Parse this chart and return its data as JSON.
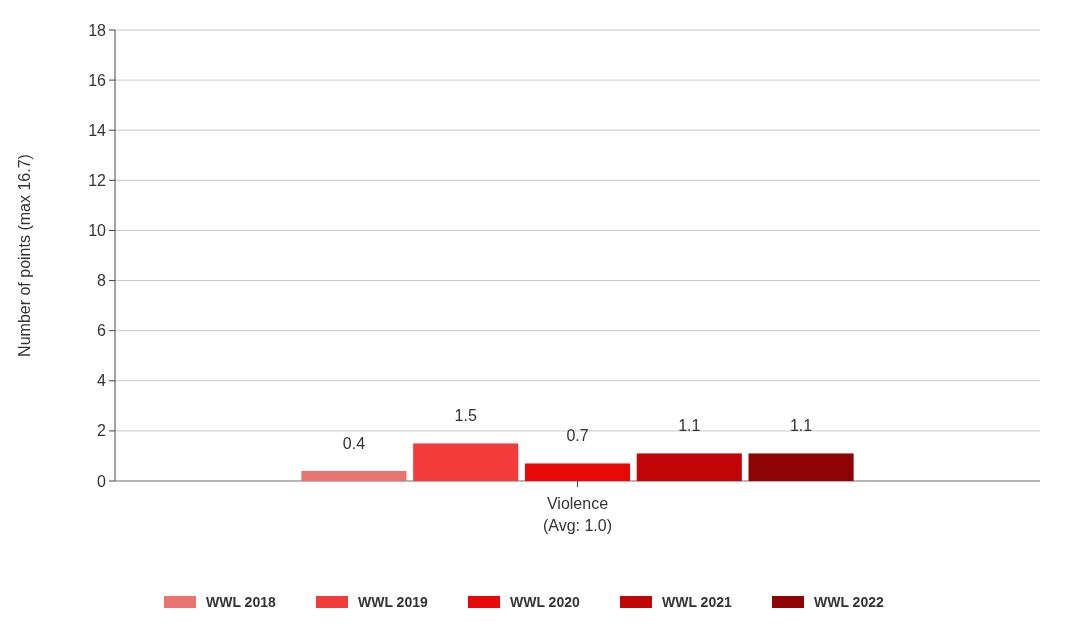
{
  "chart_data": {
    "type": "bar",
    "ylabel": "Number of points (max 16.7)",
    "categories": [
      "Violence\n(Avg: 1.0)"
    ],
    "series": [
      {
        "name": "WWL 2018",
        "color": "#e8736f",
        "values": [
          0.4
        ]
      },
      {
        "name": "WWL 2019",
        "color": "#f23c3c",
        "values": [
          1.5
        ]
      },
      {
        "name": "WWL 2020",
        "color": "#e80808",
        "values": [
          0.7
        ]
      },
      {
        "name": "WWL 2021",
        "color": "#c00606",
        "values": [
          1.1
        ]
      },
      {
        "name": "WWL 2022",
        "color": "#8e0404",
        "values": [
          1.1
        ]
      }
    ],
    "ylim": [
      0,
      18
    ],
    "yticks": [
      0,
      2,
      4,
      6,
      8,
      10,
      12,
      14,
      16,
      18
    ],
    "grid": "y",
    "data_labels": true,
    "legend": "bottom"
  }
}
